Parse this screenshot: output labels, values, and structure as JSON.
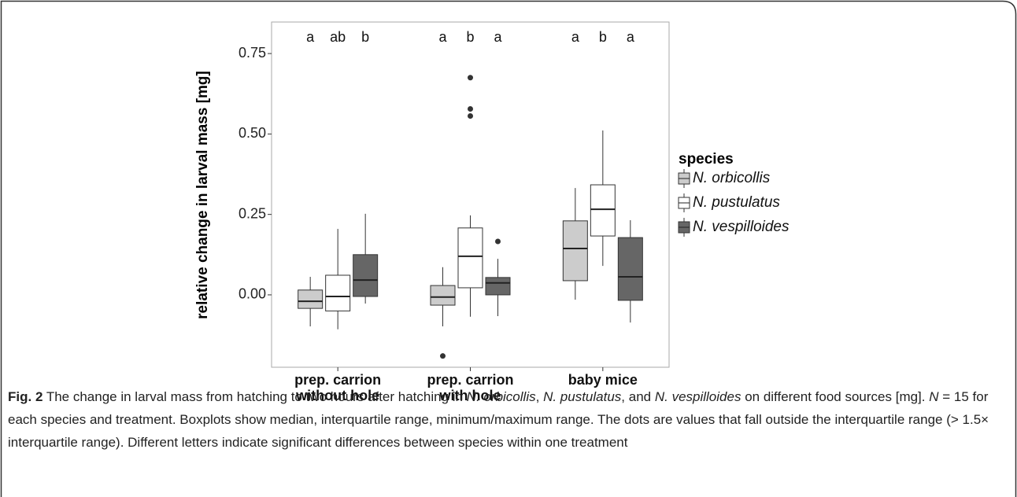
{
  "chart_data": {
    "type": "boxplot",
    "ylabel": "relative change in larval mass [mg]",
    "categories": [
      [
        "prep. carrion",
        "without hole"
      ],
      [
        "prep. carrion",
        "with hole"
      ],
      [
        "baby mice"
      ]
    ],
    "ylim": [
      -0.225,
      0.848
    ],
    "yticks": [
      {
        "value": 0,
        "label": "0.00"
      },
      {
        "value": 0.25,
        "label": "0.25"
      },
      {
        "value": 0.5,
        "label": "0.50"
      },
      {
        "value": 0.75,
        "label": "0.75"
      }
    ],
    "legend_title": "species",
    "legend_position": "right",
    "series": [
      {
        "name": "N. orbicollis",
        "color": "#cccccc",
        "boxes": [
          {
            "min": -0.098,
            "q1": -0.042,
            "median": -0.02,
            "q3": 0.015,
            "max": 0.056,
            "outliers": []
          },
          {
            "min": -0.098,
            "q1": -0.032,
            "median": -0.007,
            "q3": 0.029,
            "max": 0.086,
            "outliers": [
              -0.19
            ]
          },
          {
            "min": -0.015,
            "q1": 0.044,
            "median": 0.144,
            "q3": 0.23,
            "max": 0.332,
            "outliers": []
          }
        ]
      },
      {
        "name": "N. pustulatus",
        "color": "#ffffff",
        "boxes": [
          {
            "min": -0.107,
            "q1": -0.05,
            "median": -0.005,
            "q3": 0.061,
            "max": 0.205,
            "outliers": []
          },
          {
            "min": -0.068,
            "q1": 0.022,
            "median": 0.12,
            "q3": 0.208,
            "max": 0.247,
            "outliers": [
              0.556,
              0.578,
              0.675
            ]
          },
          {
            "min": 0.09,
            "q1": 0.183,
            "median": 0.266,
            "q3": 0.342,
            "max": 0.511,
            "outliers": []
          }
        ]
      },
      {
        "name": "N. vespilloides",
        "color": "#666666",
        "boxes": [
          {
            "min": -0.027,
            "q1": -0.005,
            "median": 0.046,
            "q3": 0.125,
            "max": 0.252,
            "outliers": []
          },
          {
            "min": -0.066,
            "q1": 0.0,
            "median": 0.037,
            "q3": 0.054,
            "max": 0.112,
            "outliers": [
              0.166
            ]
          },
          {
            "min": -0.086,
            "q1": -0.017,
            "median": 0.056,
            "q3": 0.178,
            "max": 0.232,
            "outliers": []
          }
        ]
      }
    ],
    "letters": [
      [
        "a",
        "ab",
        "b"
      ],
      [
        "a",
        "b",
        "a"
      ],
      [
        "a",
        "b",
        "a"
      ]
    ]
  },
  "caption": {
    "segments": [
      "Fig. 2",
      "The change in larval mass from hatching to two hours after hatching in",
      "N. orbicollis",
      ",",
      "N. pustulatus",
      ", and",
      "N. vespilloides",
      "on different food sources [mg].",
      "N",
      "= 15 for each species and treatment. Boxplots show median, interquartile range, minimum/maximum range. The dots are values that fall outside the interquartile range (> 1.5× interquartile range). Different letters indicate significant differences between species within one treatment"
    ]
  }
}
